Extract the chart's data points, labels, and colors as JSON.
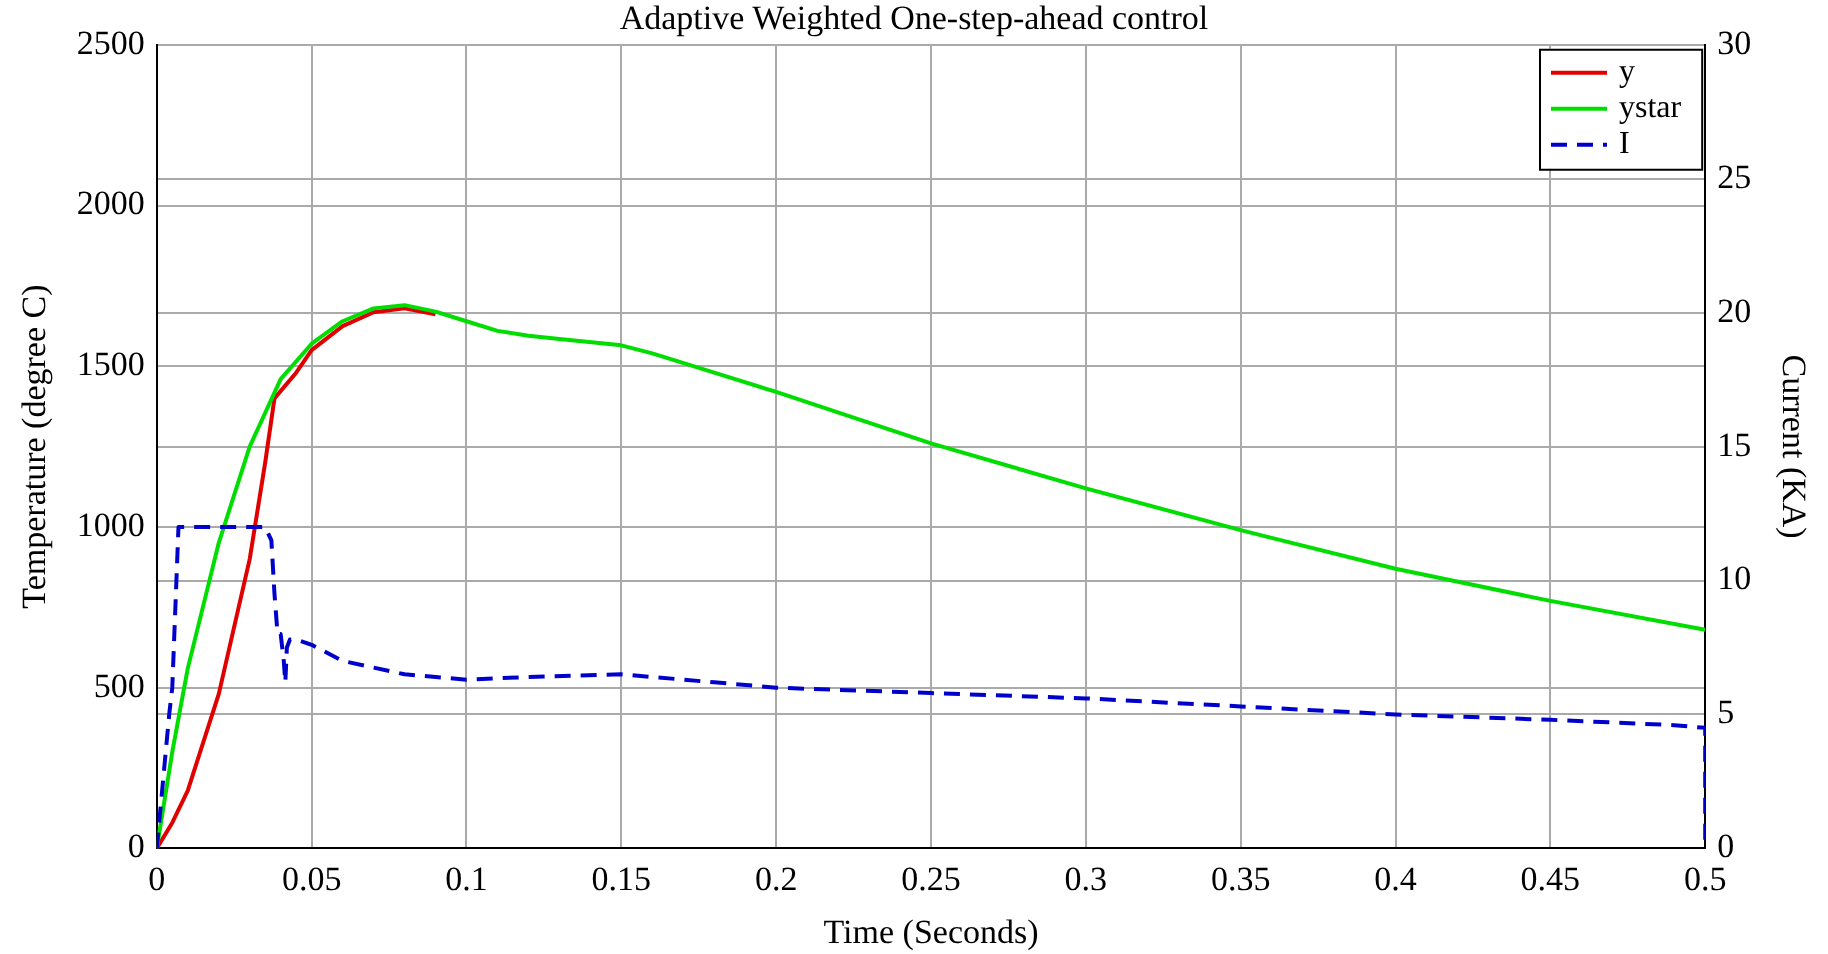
{
  "chart_data": {
    "type": "line",
    "title": "Adaptive Weighted One-step-ahead control",
    "xlabel": "Time (Seconds)",
    "ylabel": "Temperature (degree C)",
    "y2label": "Current (KA)",
    "xlim": [
      0,
      0.5
    ],
    "xticks": [
      0,
      0.05,
      0.1,
      0.15,
      0.2,
      0.25,
      0.3,
      0.35,
      0.4,
      0.45,
      0.5
    ],
    "ylim": [
      0,
      2500
    ],
    "yticks": [
      0,
      500,
      1000,
      1500,
      2000,
      2500
    ],
    "y2lim": [
      0,
      30
    ],
    "y2ticks": [
      0,
      5,
      10,
      15,
      20,
      25,
      30
    ],
    "grid": true,
    "legend": "top right",
    "marker": "none",
    "series": [
      {
        "name": "y",
        "color": "#e00000",
        "line_style": "solid",
        "x": [
          0,
          0.005,
          0.01,
          0.02,
          0.03,
          0.035,
          0.038,
          0.045,
          0.05,
          0.06,
          0.07,
          0.08,
          0.09
        ],
        "values": [
          0,
          80,
          180,
          480,
          900,
          1200,
          1400,
          1480,
          1550,
          1625,
          1668,
          1680,
          1662
        ]
      },
      {
        "name": "ystar",
        "color": "#00dd00",
        "line_style": "solid",
        "x": [
          0,
          0.005,
          0.01,
          0.02,
          0.03,
          0.04,
          0.05,
          0.06,
          0.07,
          0.08,
          0.09,
          0.1,
          0.11,
          0.12,
          0.13,
          0.15,
          0.16,
          0.18,
          0.2,
          0.25,
          0.3,
          0.35,
          0.4,
          0.45,
          0.5
        ],
        "values": [
          0,
          300,
          560,
          950,
          1250,
          1460,
          1570,
          1640,
          1680,
          1690,
          1670,
          1640,
          1610,
          1595,
          1585,
          1565,
          1540,
          1480,
          1420,
          1260,
          1120,
          990,
          870,
          770,
          680
        ]
      },
      {
        "name": "I",
        "color": "#0000cc",
        "line_style": "dashed",
        "axis": "y2",
        "x": [
          0,
          0.002,
          0.004,
          0.005,
          0.007,
          0.035,
          0.037,
          0.038,
          0.039,
          0.04,
          0.041,
          0.0415,
          0.042,
          0.043,
          0.045,
          0.05,
          0.06,
          0.08,
          0.1,
          0.12,
          0.15,
          0.18,
          0.2,
          0.25,
          0.3,
          0.35,
          0.4,
          0.45,
          0.49,
          0.5,
          0.5
        ],
        "values": [
          0,
          2.5,
          5,
          6,
          12,
          12,
          11.5,
          9.5,
          8,
          8,
          7,
          6.2,
          7.5,
          7.8,
          7.8,
          7.6,
          7,
          6.5,
          6.3,
          6.4,
          6.5,
          6.2,
          6,
          5.8,
          5.6,
          5.3,
          5,
          4.8,
          4.6,
          4.5,
          0
        ]
      }
    ]
  }
}
